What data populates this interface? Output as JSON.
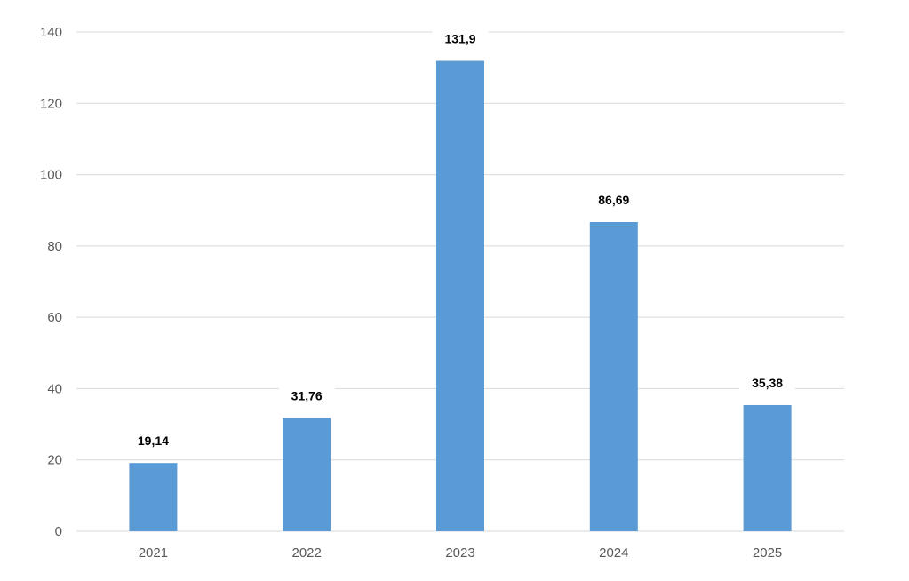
{
  "chart_data": {
    "type": "bar",
    "title": "",
    "xlabel": "",
    "ylabel": "",
    "categories": [
      "2021",
      "2022",
      "2023",
      "2024",
      "2025"
    ],
    "values": [
      19.14,
      31.76,
      131.9,
      86.69,
      35.38
    ],
    "data_labels": [
      "19,14",
      "31,76",
      "131,9",
      "86,69",
      "35,38"
    ],
    "ylim": [
      0,
      140
    ],
    "yticks": [
      0,
      20,
      40,
      60,
      80,
      100,
      120,
      140
    ],
    "ytick_labels": [
      "0",
      "20",
      "40",
      "60",
      "80",
      "100",
      "120",
      "140"
    ],
    "grid": true,
    "legend": "none",
    "colors": {
      "bar": "#5b9bd5",
      "grid": "#d9d9d9",
      "axis_text": "#595959",
      "label_text": "#000000"
    }
  }
}
